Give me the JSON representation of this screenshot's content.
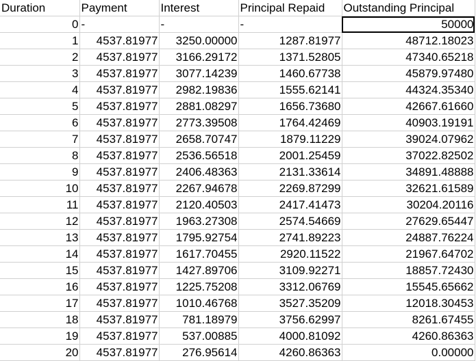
{
  "sheet": {
    "headers": [
      "Duration",
      "Payment",
      "Interest",
      "Principal Repaid",
      "Outstanding Principal"
    ],
    "selected_cell": {
      "row": 1,
      "col": 4
    },
    "rows": [
      [
        "0",
        "-",
        "-",
        "-",
        "50000"
      ],
      [
        "1",
        "4537.81977",
        "3250.00000",
        "1287.81977",
        "48712.18023"
      ],
      [
        "2",
        "4537.81977",
        "3166.29172",
        "1371.52805",
        "47340.65218"
      ],
      [
        "3",
        "4537.81977",
        "3077.14239",
        "1460.67738",
        "45879.97480"
      ],
      [
        "4",
        "4537.81977",
        "2982.19836",
        "1555.62141",
        "44324.35340"
      ],
      [
        "5",
        "4537.81977",
        "2881.08297",
        "1656.73680",
        "42667.61660"
      ],
      [
        "6",
        "4537.81977",
        "2773.39508",
        "1764.42469",
        "40903.19191"
      ],
      [
        "7",
        "4537.81977",
        "2658.70747",
        "1879.11229",
        "39024.07962"
      ],
      [
        "8",
        "4537.81977",
        "2536.56518",
        "2001.25459",
        "37022.82502"
      ],
      [
        "9",
        "4537.81977",
        "2406.48363",
        "2131.33614",
        "34891.48888"
      ],
      [
        "10",
        "4537.81977",
        "2267.94678",
        "2269.87299",
        "32621.61589"
      ],
      [
        "11",
        "4537.81977",
        "2120.40503",
        "2417.41473",
        "30204.20116"
      ],
      [
        "12",
        "4537.81977",
        "1963.27308",
        "2574.54669",
        "27629.65447"
      ],
      [
        "13",
        "4537.81977",
        "1795.92754",
        "2741.89223",
        "24887.76224"
      ],
      [
        "14",
        "4537.81977",
        "1617.70455",
        "2920.11522",
        "21967.64702"
      ],
      [
        "15",
        "4537.81977",
        "1427.89706",
        "3109.92271",
        "18857.72430"
      ],
      [
        "16",
        "4537.81977",
        "1225.75208",
        "3312.06769",
        "15545.65662"
      ],
      [
        "17",
        "4537.81977",
        "1010.46768",
        "3527.35209",
        "12018.30453"
      ],
      [
        "18",
        "4537.81977",
        "781.18979",
        "3756.62997",
        "8261.67455"
      ],
      [
        "19",
        "4537.81977",
        "537.00885",
        "4000.81092",
        "4260.86363"
      ],
      [
        "20",
        "4537.81977",
        "276.95614",
        "4260.86363",
        "0.00000"
      ]
    ]
  }
}
